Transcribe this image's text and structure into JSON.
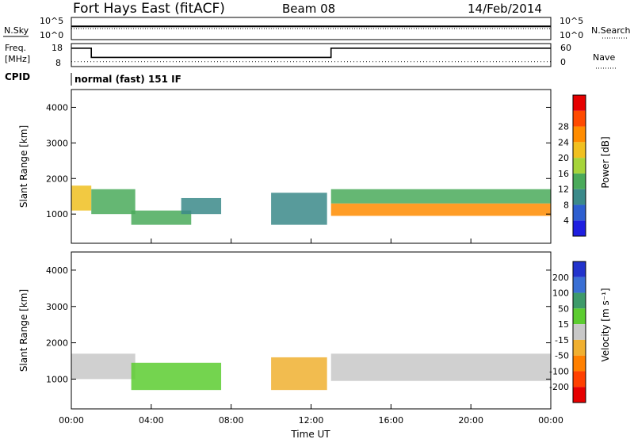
{
  "header": {
    "station": "Fort Hays East (fitACF)",
    "beam": "Beam 08",
    "date": "14/Feb/2014"
  },
  "strip": {
    "nsky_label": "N.Sky",
    "nsearch_label": "N.Search",
    "nsky_ticks": [
      "10^5",
      "10^0"
    ],
    "nsearch_ticks": [
      "10^5",
      "10^0"
    ],
    "freq_label_1": "Freq.",
    "freq_label_2": "[MHz]",
    "freq_ticks": [
      "18",
      "8"
    ],
    "nave_label": "Nave",
    "nave_ticks": [
      "60",
      "0"
    ],
    "cpid_label": "CPID",
    "cpid_value": "normal (fast) 151 IF"
  },
  "axes": {
    "ylabel": "Slant Range [km]",
    "xlabel": "Time UT",
    "x_ticks": [
      "00:00",
      "04:00",
      "08:00",
      "12:00",
      "16:00",
      "20:00",
      "00:00"
    ],
    "y_ticks": [
      "1000",
      "2000",
      "3000",
      "4000"
    ]
  },
  "colorbars": {
    "power": {
      "label": "Power [dB]",
      "ticks": [
        "4",
        "8",
        "12",
        "16",
        "20",
        "24",
        "28"
      ],
      "colors": [
        "#1f1fe0",
        "#2e5fd0",
        "#3b8a8a",
        "#4aaa5a",
        "#a6d43a",
        "#f0c020",
        "#ff8c00",
        "#ff4a00",
        "#e60000"
      ]
    },
    "velocity": {
      "label": "Velocity [m s⁻¹]",
      "ticks": [
        "200",
        "100",
        "50",
        "15",
        "-15",
        "-50",
        "-100",
        "-200"
      ],
      "colors": [
        "#2233cc",
        "#3a6fd4",
        "#3d9a6a",
        "#5ccc30",
        "#c8c8c8",
        "#f0b030",
        "#ff8000",
        "#ff4000",
        "#e60000"
      ]
    }
  },
  "chart_data": [
    {
      "type": "line",
      "panel": "nsky-nsearch",
      "x_range_hours": [
        0,
        24
      ],
      "yscale": "log",
      "ylim_left": [
        1,
        100000
      ],
      "ylim_right": [
        1,
        100000
      ],
      "series": [
        {
          "name": "N.Sky",
          "x": [
            0,
            4,
            8,
            12,
            16,
            20,
            24
          ],
          "y": [
            1000,
            1000,
            1000,
            1000,
            1000,
            1000,
            1000
          ]
        },
        {
          "name": "N.Search",
          "x": [
            0,
            4,
            8,
            12,
            16,
            20,
            24
          ],
          "y": [
            300,
            300,
            300,
            300,
            300,
            300,
            300
          ]
        }
      ]
    },
    {
      "type": "line",
      "panel": "freq-nave",
      "x_range_hours": [
        0,
        24
      ],
      "ylim_left": [
        8,
        18
      ],
      "ylim_right": [
        0,
        60
      ],
      "series": [
        {
          "name": "Freq.",
          "x": [
            0,
            1,
            1,
            13,
            13,
            24
          ],
          "y": [
            16,
            16,
            12,
            12,
            16,
            16
          ]
        },
        {
          "name": "Nave",
          "x": [
            0,
            24
          ],
          "y": [
            13,
            13
          ]
        }
      ]
    },
    {
      "type": "heatmap",
      "panel": "power",
      "xlabel": "Time UT",
      "ylabel": "Slant Range [km]",
      "xlim_hours": [
        0,
        24
      ],
      "ylim_km": [
        180,
        4500
      ],
      "regions": [
        {
          "t0": 0.0,
          "t1": 1.0,
          "r0": 1100,
          "r1": 1800,
          "level_db": 20
        },
        {
          "t0": 1.0,
          "t1": 3.2,
          "r0": 1000,
          "r1": 1700,
          "level_db": 14
        },
        {
          "t0": 3.0,
          "t1": 6.0,
          "r0": 700,
          "r1": 1100,
          "level_db": 14
        },
        {
          "t0": 5.5,
          "t1": 7.5,
          "r0": 1000,
          "r1": 1450,
          "level_db": 9
        },
        {
          "t0": 10.0,
          "t1": 12.8,
          "r0": 700,
          "r1": 1600,
          "level_db": 9
        },
        {
          "t0": 13.0,
          "t1": 24.0,
          "r0": 950,
          "r1": 1300,
          "level_db": 26
        },
        {
          "t0": 13.0,
          "t1": 24.0,
          "r0": 1300,
          "r1": 1700,
          "level_db": 12
        }
      ]
    },
    {
      "type": "heatmap",
      "panel": "velocity",
      "xlabel": "Time UT",
      "ylabel": "Slant Range [km]",
      "xlim_hours": [
        0,
        24
      ],
      "ylim_km": [
        180,
        4500
      ],
      "regions": [
        {
          "t0": 0.0,
          "t1": 3.2,
          "r0": 1000,
          "r1": 1700,
          "velocity": 0
        },
        {
          "t0": 3.0,
          "t1": 7.5,
          "r0": 700,
          "r1": 1450,
          "velocity": 40
        },
        {
          "t0": 10.0,
          "t1": 12.8,
          "r0": 700,
          "r1": 1600,
          "velocity": -50
        },
        {
          "t0": 13.0,
          "t1": 24.0,
          "r0": 950,
          "r1": 1700,
          "velocity": 0
        }
      ]
    }
  ]
}
